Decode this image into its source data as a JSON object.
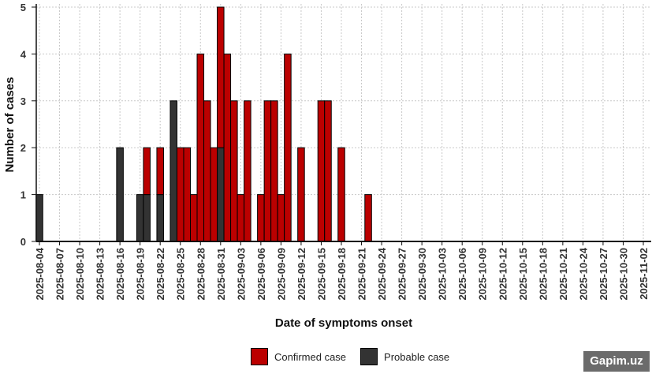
{
  "chart_data": {
    "type": "bar",
    "stacked": true,
    "xlabel": "Date of symptoms onset",
    "ylabel": "Number of cases",
    "ylim": [
      0,
      5
    ],
    "yticks": [
      "0",
      "1",
      "2",
      "3",
      "4",
      "5"
    ],
    "xlim": [
      "2025-08-04",
      "2025-11-02"
    ],
    "xticks": [
      "2025-08-04",
      "2025-08-07",
      "2025-08-10",
      "2025-08-13",
      "2025-08-16",
      "2025-08-19",
      "2025-08-22",
      "2025-08-25",
      "2025-08-28",
      "2025-08-31",
      "2025-09-03",
      "2025-09-06",
      "2025-09-09",
      "2025-09-12",
      "2025-09-15",
      "2025-09-18",
      "2025-09-21",
      "2025-09-24",
      "2025-09-27",
      "2025-09-30",
      "2025-10-03",
      "2025-10-06",
      "2025-10-09",
      "2025-10-12",
      "2025-10-15",
      "2025-10-18",
      "2025-10-21",
      "2025-10-24",
      "2025-10-27",
      "2025-10-30",
      "2025-11-02"
    ],
    "grid": true,
    "legend_position": "bottom",
    "series": [
      {
        "name": "Probable case",
        "color": "#333333",
        "points": [
          [
            "2025-08-04",
            1
          ],
          [
            "2025-08-16",
            2
          ],
          [
            "2025-08-19",
            1
          ],
          [
            "2025-08-20",
            1
          ],
          [
            "2025-08-22",
            1
          ],
          [
            "2025-08-24",
            3
          ],
          [
            "2025-08-31",
            2
          ]
        ]
      },
      {
        "name": "Confirmed case",
        "color": "#bb0000",
        "points": [
          [
            "2025-08-20",
            1
          ],
          [
            "2025-08-22",
            1
          ],
          [
            "2025-08-25",
            2
          ],
          [
            "2025-08-26",
            2
          ],
          [
            "2025-08-27",
            1
          ],
          [
            "2025-08-28",
            4
          ],
          [
            "2025-08-29",
            3
          ],
          [
            "2025-08-30",
            2
          ],
          [
            "2025-08-31",
            3
          ],
          [
            "2025-09-01",
            4
          ],
          [
            "2025-09-02",
            3
          ],
          [
            "2025-09-03",
            1
          ],
          [
            "2025-09-04",
            3
          ],
          [
            "2025-09-06",
            1
          ],
          [
            "2025-09-07",
            3
          ],
          [
            "2025-09-08",
            3
          ],
          [
            "2025-09-09",
            1
          ],
          [
            "2025-09-10",
            4
          ],
          [
            "2025-09-12",
            2
          ],
          [
            "2025-09-15",
            3
          ],
          [
            "2025-09-16",
            3
          ],
          [
            "2025-09-18",
            2
          ],
          [
            "2025-09-22",
            1
          ]
        ]
      }
    ]
  },
  "legend": {
    "confirmed_label": "Confirmed case",
    "probable_label": "Probable case"
  },
  "watermark": "Gapim.uz"
}
